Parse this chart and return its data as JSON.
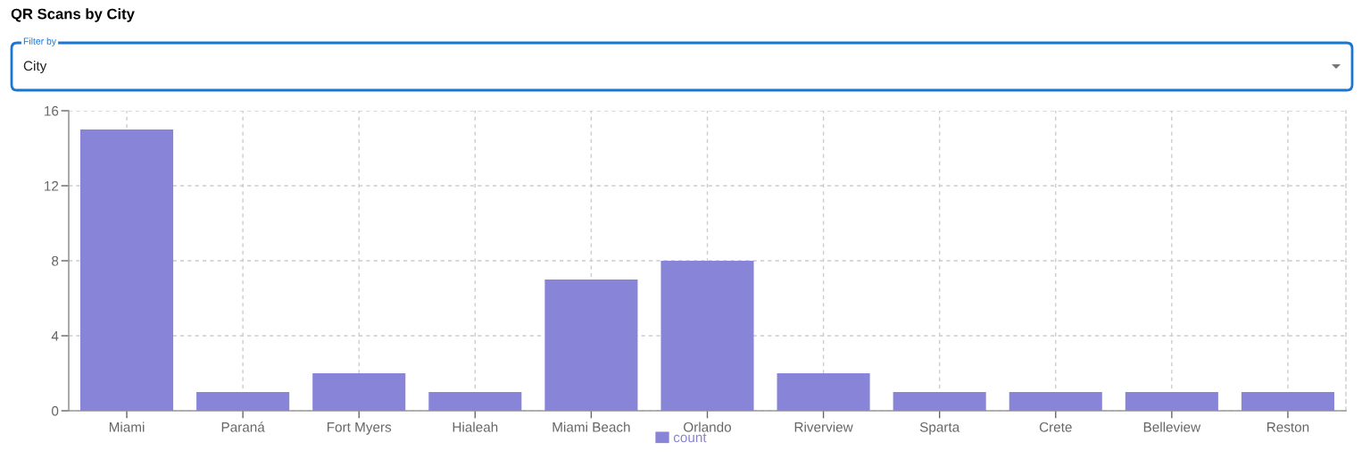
{
  "chart_data": {
    "type": "bar",
    "title": "QR Scans by City",
    "annotations": [
      "Filter by",
      "City"
    ],
    "categories": [
      "Miami",
      "Paraná",
      "Fort Myers",
      "Hialeah",
      "Miami Beach",
      "Orlando",
      "Riverview",
      "Sparta",
      "Crete",
      "Belleview",
      "Reston"
    ],
    "series": [
      {
        "name": "count",
        "color": "#8884d8",
        "values": [
          15,
          1,
          2,
          1,
          7,
          8,
          2,
          1,
          1,
          1,
          1
        ]
      }
    ],
    "ylim": [
      0,
      16
    ],
    "yticks": [
      0,
      4,
      8,
      12,
      16
    ],
    "grid": true,
    "legend": "bottom"
  }
}
